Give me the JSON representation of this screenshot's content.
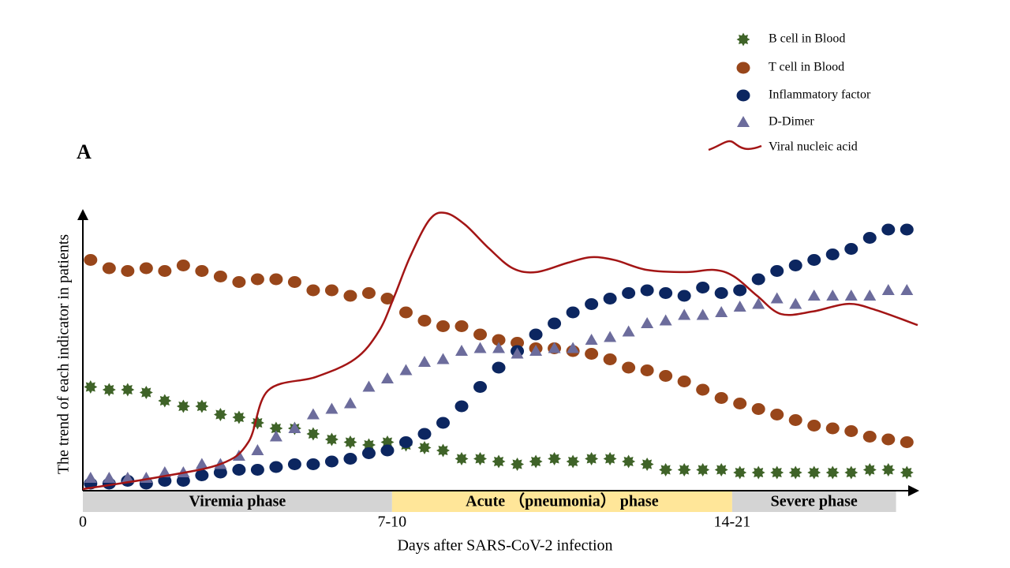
{
  "chart_data": {
    "type": "scatter",
    "panel_label": "A",
    "ylabel": "The trend of each indicator in patients",
    "xlabel": "Days after SARS-CoV-2  infection",
    "xlim": [
      0,
      27
    ],
    "ylim": [
      0,
      100
    ],
    "xticks": [
      {
        "value": 0,
        "label": "0"
      },
      {
        "value": 10,
        "label": "7-10"
      },
      {
        "value": 21,
        "label": "14-21"
      }
    ],
    "phases": [
      {
        "label": "Viremia  phase",
        "start": 0,
        "end": 10,
        "color": "#d4d4d4"
      },
      {
        "label": "Acute （pneumonia） phase",
        "start": 10,
        "end": 21,
        "color": "#ffe699"
      },
      {
        "label": "Severe phase",
        "start": 21,
        "end": 26.3,
        "color": "#d4d4d4"
      }
    ],
    "x": [
      0.25,
      0.85,
      1.45,
      2.05,
      2.65,
      3.25,
      3.85,
      4.45,
      5.05,
      5.65,
      6.25,
      6.85,
      7.45,
      8.05,
      8.65,
      9.25,
      9.85,
      10.45,
      11.05,
      11.65,
      12.25,
      12.85,
      13.45,
      14.05,
      14.65,
      15.25,
      15.85,
      16.45,
      17.05,
      17.65,
      18.25,
      18.85,
      19.45,
      20.05,
      20.65,
      21.25,
      21.85,
      22.45,
      23.05,
      23.65,
      24.25,
      24.85,
      25.45,
      26.05,
      26.65
    ],
    "series": [
      {
        "name": "B cell in Blood",
        "type": "scatter",
        "marker": "star",
        "color": "#3f6328",
        "values": [
          37,
          36,
          36,
          35,
          32,
          30,
          30,
          27,
          26,
          24,
          22,
          22,
          20,
          18,
          17,
          16,
          17,
          16,
          15,
          14,
          11,
          11,
          10,
          9,
          10,
          11,
          10,
          11,
          11,
          10,
          9,
          7,
          7,
          7,
          7,
          6,
          6,
          6,
          6,
          6,
          6,
          6,
          7,
          7,
          6
        ]
      },
      {
        "name": "T cell in Blood",
        "type": "scatter",
        "marker": "circle",
        "color": "#98461a",
        "values": [
          83,
          80,
          79,
          80,
          79,
          81,
          79,
          77,
          75,
          76,
          76,
          75,
          72,
          72,
          70,
          71,
          69,
          64,
          61,
          59,
          59,
          56,
          54,
          53,
          51,
          51,
          50,
          49,
          47,
          44,
          43,
          41,
          39,
          36,
          33,
          31,
          29,
          27,
          25,
          23,
          22,
          21,
          19,
          18,
          17
        ]
      },
      {
        "name": "Inflammatory  factor",
        "type": "scatter",
        "marker": "circle",
        "color": "#0c2660",
        "values": [
          2,
          2,
          3,
          2,
          3,
          3,
          5,
          6,
          7,
          7,
          8,
          9,
          9,
          10,
          11,
          13,
          14,
          17,
          20,
          24,
          30,
          37,
          44,
          50,
          56,
          60,
          64,
          67,
          69,
          71,
          72,
          71,
          70,
          73,
          71,
          72,
          76,
          79,
          81,
          83,
          85,
          87,
          91,
          94,
          94
        ]
      },
      {
        "name": "D-Dimer",
        "type": "scatter",
        "marker": "triangle",
        "color": "#6c6c9c",
        "values": [
          4,
          4,
          4,
          4,
          6,
          6,
          9,
          9,
          12,
          14,
          19,
          22,
          27,
          29,
          31,
          37,
          40,
          43,
          46,
          47,
          50,
          51,
          51,
          49,
          50,
          51,
          51,
          54,
          55,
          57,
          60,
          61,
          63,
          63,
          64,
          66,
          67,
          69,
          67,
          70,
          70,
          70,
          70,
          72,
          72
        ]
      },
      {
        "name": "Viral nucleic acid",
        "type": "line",
        "color": "#a31515",
        "x": [
          0,
          2.42,
          4.46,
          5.36,
          5.99,
          7.53,
          8.8,
          9.57,
          10.08,
          10.59,
          11.22,
          11.73,
          12.37,
          13.14,
          13.9,
          14.67,
          15.69,
          16.45,
          17.22,
          18.24,
          19.52,
          20.41,
          21.05,
          21.81,
          22.58,
          23.6,
          24.74,
          25.64,
          27
        ],
        "values": [
          0,
          4.3,
          9.1,
          17.1,
          35.7,
          40.6,
          47.1,
          57.1,
          70,
          84.3,
          97.7,
          100,
          95.7,
          87.1,
          80,
          78.6,
          82,
          84,
          82.9,
          79.4,
          78.6,
          79.4,
          77.1,
          70,
          63.4,
          64.3,
          67.1,
          64.9,
          59.4
        ]
      }
    ]
  }
}
